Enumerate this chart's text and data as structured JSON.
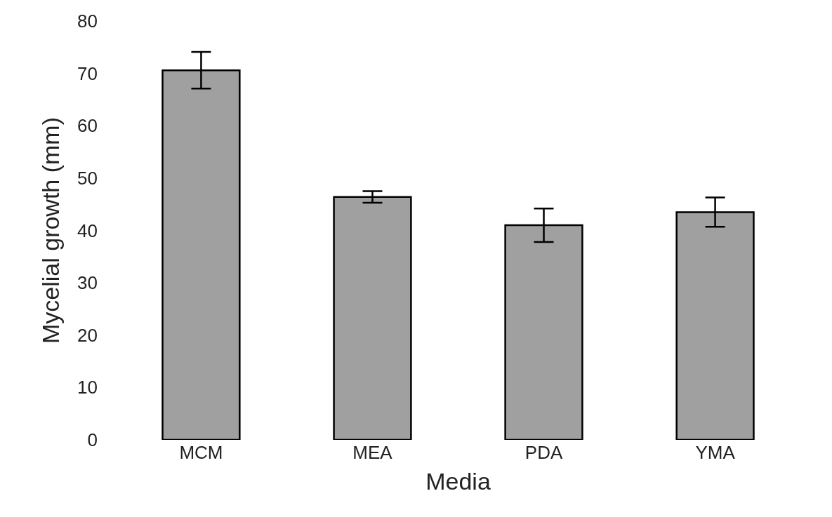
{
  "chart_data": {
    "type": "bar",
    "xlabel": "Media",
    "ylabel": "Mycelial growth (mm)",
    "categories": [
      "MCM",
      "MEA",
      "PDA",
      "YMA"
    ],
    "values": [
      70.6,
      46.4,
      41.0,
      43.5
    ],
    "errors": [
      3.5,
      1.1,
      3.2,
      2.8
    ],
    "color": "#a0a0a0",
    "ylim": [
      0,
      80
    ],
    "yticks": [
      0,
      10,
      20,
      30,
      40,
      50,
      60,
      70,
      80
    ]
  }
}
